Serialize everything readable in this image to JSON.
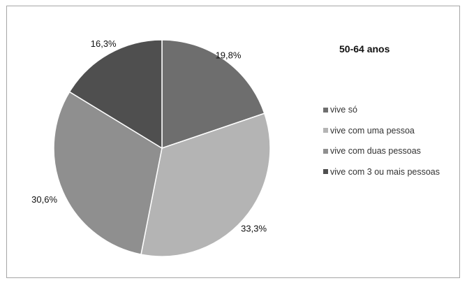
{
  "chart_data": {
    "type": "pie",
    "title": "50-64 anos",
    "categories": [
      "vive só",
      "vive com uma pessoa",
      "vive com duas pessoas",
      "vive com 3 ou mais pessoas"
    ],
    "values": [
      19.8,
      33.3,
      30.6,
      16.3
    ],
    "labels": [
      "19,8%",
      "33,3%",
      "30,6%",
      "16,3%"
    ],
    "colors": [
      "#6e6e6e",
      "#b4b4b4",
      "#8f8f8f",
      "#4f4f4f"
    ],
    "legend_position": "right",
    "start_angle": "12 o'clock, clockwise"
  }
}
